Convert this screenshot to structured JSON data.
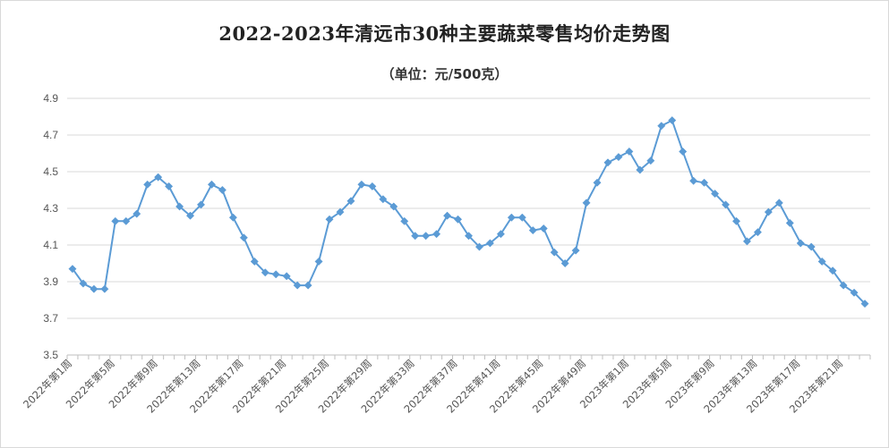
{
  "chart_data": {
    "type": "line",
    "title": "2022-2023年清远市30种主要蔬菜零售均价走势图",
    "subtitle": "（单位：元/500克）",
    "xlabel": "",
    "ylabel": "",
    "ylim": [
      3.5,
      4.9
    ],
    "yticks": [
      "3.5",
      "3.7",
      "3.9",
      "4.1",
      "4.3",
      "4.5",
      "4.7",
      "4.9"
    ],
    "ytick_values": [
      3.5,
      3.7,
      3.9,
      4.1,
      4.3,
      4.5,
      4.7,
      4.9
    ],
    "xtick_labels": [
      "2022年第1周",
      "2022年第5周",
      "2022年第9周",
      "2022年第13周",
      "2022年第17周",
      "2022年第21周",
      "2022年第25周",
      "2022年第29周",
      "2022年第33周",
      "2022年第37周",
      "2022年第41周",
      "2022年第45周",
      "2022年第49周",
      "2023年第1周",
      "2023年第5周",
      "2023年第9周",
      "2023年第13周",
      "2023年第17周",
      "2023年第21周"
    ],
    "grid": true,
    "legend": "none",
    "color": "#5b9bd5",
    "series": [
      {
        "values": [
          3.97,
          3.89,
          3.86,
          3.86,
          4.23,
          4.23,
          4.27,
          4.43,
          4.47,
          4.42,
          4.31,
          4.26,
          4.32,
          4.43,
          4.4,
          4.25,
          4.14,
          4.01,
          3.95,
          3.94,
          3.93,
          3.88,
          3.88,
          4.01,
          4.24,
          4.28,
          4.34,
          4.43,
          4.42,
          4.35,
          4.31,
          4.23,
          4.15,
          4.15,
          4.16,
          4.26,
          4.24,
          4.15,
          4.09,
          4.11,
          4.16,
          4.25,
          4.25,
          4.18,
          4.19,
          4.06,
          4.0,
          4.07,
          4.33,
          4.44,
          4.55,
          4.58,
          4.61,
          4.51,
          4.56,
          4.75,
          4.78,
          4.61,
          4.45,
          4.44,
          4.38,
          4.32,
          4.23,
          4.12,
          4.17,
          4.28,
          4.33,
          4.22,
          4.11,
          4.09,
          4.01,
          3.96,
          3.88,
          3.84,
          3.78
        ]
      }
    ]
  }
}
